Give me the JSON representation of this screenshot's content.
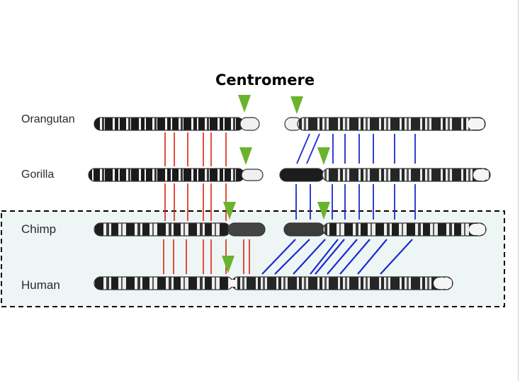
{
  "title": "Centromere",
  "species": {
    "orangutan": "Orangutan",
    "gorilla": "Gorilla",
    "chimp": "Chimp",
    "human": "Human"
  },
  "colors": {
    "centromere_marker": "#6ab32e",
    "left_arm_links": "#dd2211",
    "right_arm_links": "#1a2bd0",
    "highlight_box_fill": "#eef5f5",
    "highlight_box_border": "#000000",
    "band_dark": "#1a1a1a",
    "band_light": "#f2f2f2"
  }
}
